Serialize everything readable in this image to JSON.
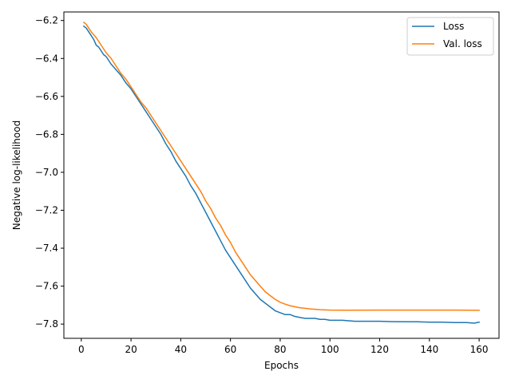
{
  "chart_data": {
    "type": "line",
    "title": "",
    "xlabel": "Epochs",
    "ylabel": "Negative log-likelihood",
    "xlim": [
      -7,
      168
    ],
    "ylim": [
      -7.875,
      -6.155
    ],
    "xticks": [
      0,
      20,
      40,
      60,
      80,
      100,
      120,
      140,
      160
    ],
    "yticks": [
      -7.8,
      -7.6,
      -7.4,
      -7.2,
      -7.0,
      -6.8,
      -6.6,
      -6.4,
      -6.2
    ],
    "grid": false,
    "legend_position": "top-right",
    "series": [
      {
        "name": "Loss",
        "color": "#1f77b4",
        "x": [
          1,
          2,
          3,
          4,
          5,
          6,
          7,
          8,
          9,
          10,
          12,
          14,
          16,
          18,
          20,
          22,
          24,
          26,
          28,
          30,
          32,
          34,
          36,
          38,
          40,
          42,
          44,
          46,
          48,
          50,
          52,
          54,
          56,
          58,
          60,
          62,
          64,
          66,
          68,
          70,
          72,
          74,
          76,
          78,
          80,
          82,
          84,
          86,
          88,
          90,
          92,
          94,
          96,
          98,
          100,
          105,
          110,
          115,
          120,
          125,
          130,
          135,
          140,
          145,
          150,
          155,
          158,
          160
        ],
        "y": [
          -6.23,
          -6.24,
          -6.26,
          -6.28,
          -6.3,
          -6.33,
          -6.34,
          -6.36,
          -6.38,
          -6.39,
          -6.43,
          -6.46,
          -6.49,
          -6.53,
          -6.56,
          -6.6,
          -6.64,
          -6.68,
          -6.72,
          -6.76,
          -6.8,
          -6.85,
          -6.89,
          -6.94,
          -6.98,
          -7.02,
          -7.07,
          -7.11,
          -7.16,
          -7.21,
          -7.26,
          -7.31,
          -7.36,
          -7.41,
          -7.45,
          -7.49,
          -7.53,
          -7.57,
          -7.61,
          -7.64,
          -7.67,
          -7.69,
          -7.71,
          -7.73,
          -7.74,
          -7.75,
          -7.75,
          -7.76,
          -7.765,
          -7.77,
          -7.77,
          -7.77,
          -7.775,
          -7.775,
          -7.78,
          -7.78,
          -7.785,
          -7.785,
          -7.785,
          -7.787,
          -7.788,
          -7.788,
          -7.79,
          -7.79,
          -7.792,
          -7.792,
          -7.795,
          -7.79
        ]
      },
      {
        "name": "Val. loss",
        "color": "#ff7f0e",
        "x": [
          1,
          2,
          4,
          6,
          8,
          10,
          12,
          14,
          16,
          18,
          20,
          22,
          24,
          26,
          28,
          30,
          32,
          34,
          36,
          38,
          40,
          42,
          44,
          46,
          48,
          50,
          52,
          54,
          56,
          58,
          60,
          62,
          64,
          66,
          68,
          70,
          72,
          74,
          76,
          78,
          80,
          82,
          84,
          86,
          88,
          90,
          92,
          94,
          96,
          98,
          100,
          105,
          110,
          120,
          130,
          140,
          150,
          160
        ],
        "y": [
          -6.21,
          -6.22,
          -6.26,
          -6.29,
          -6.33,
          -6.37,
          -6.4,
          -6.44,
          -6.48,
          -6.51,
          -6.55,
          -6.59,
          -6.63,
          -6.66,
          -6.7,
          -6.74,
          -6.78,
          -6.82,
          -6.86,
          -6.9,
          -6.94,
          -6.98,
          -7.02,
          -7.06,
          -7.1,
          -7.15,
          -7.19,
          -7.24,
          -7.28,
          -7.33,
          -7.37,
          -7.42,
          -7.46,
          -7.5,
          -7.54,
          -7.57,
          -7.6,
          -7.63,
          -7.65,
          -7.67,
          -7.685,
          -7.695,
          -7.703,
          -7.709,
          -7.714,
          -7.717,
          -7.72,
          -7.722,
          -7.724,
          -7.725,
          -7.726,
          -7.727,
          -7.727,
          -7.726,
          -7.726,
          -7.726,
          -7.726,
          -7.727
        ]
      }
    ]
  }
}
